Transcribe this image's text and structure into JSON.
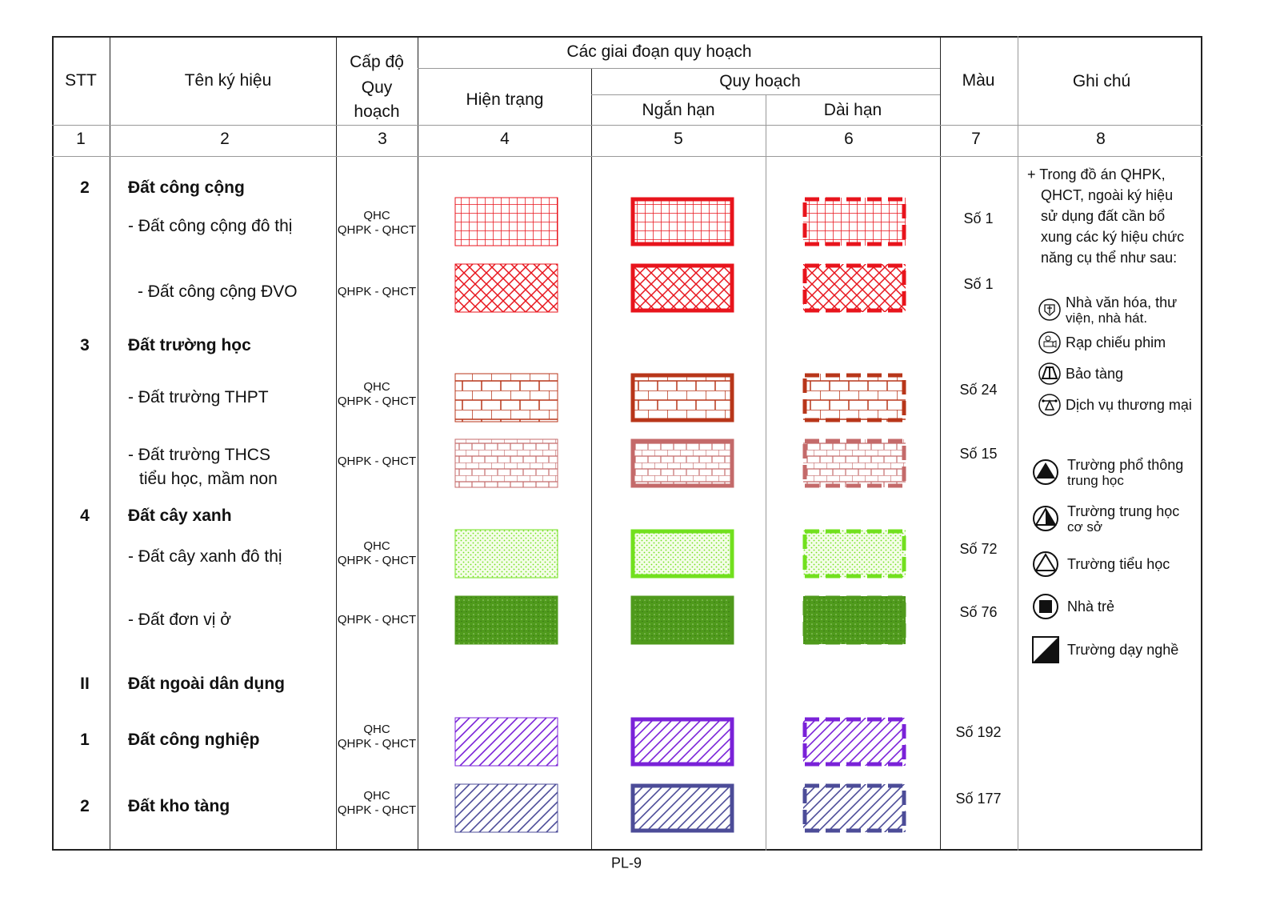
{
  "header": {
    "stt": "STT",
    "name": "Tên ký hiệu",
    "level": [
      "Cấp độ",
      "Quy",
      "hoạch"
    ],
    "stages": "Các giai đoạn quy hoạch",
    "current": "Hiện trạng",
    "planning": "Quy hoạch",
    "short": "Ngắn hạn",
    "long": "Dài hạn",
    "color": "Màu",
    "note": "Ghi chú",
    "numbers": [
      "1",
      "2",
      "3",
      "4",
      "5",
      "6",
      "7",
      "8"
    ]
  },
  "rows": [
    {
      "stt": "2",
      "name": "Đất công cộng",
      "bold": true
    },
    {
      "name": "- Đất công cộng đô thị",
      "level": [
        "QHC",
        "QHPK - QHCT"
      ],
      "color": "Số 1",
      "pattern": "grid",
      "hex": "#e8141c"
    },
    {
      "name": "- Đất công cộng ĐVO",
      "level": [
        "QHPK - QHCT"
      ],
      "color": "Số 1",
      "pattern": "diamond",
      "hex": "#e8141c"
    },
    {
      "stt": "3",
      "name": "Đất trường học",
      "bold": true
    },
    {
      "name": "- Đất  trường THPT",
      "level": [
        "QHC",
        "QHPK - QHCT"
      ],
      "color": "Số 24",
      "pattern": "brick",
      "hex": "#b8361a"
    },
    {
      "name": "- Đất  trường THCS",
      "name2": "tiểu học, mầm non",
      "level": [
        "QHPK - QHCT"
      ],
      "color": "Số 15",
      "pattern": "brick2",
      "hex": "#c46a6a"
    },
    {
      "stt": "4",
      "name": "Đất cây xanh",
      "bold": true
    },
    {
      "name": "- Đất  cây xanh đô thị",
      "level": [
        "QHC",
        "QHPK - QHCT"
      ],
      "color": "Số 72",
      "pattern": "dots",
      "hex": "#72e01e"
    },
    {
      "name": "- Đất  đơn vị ở",
      "level": [
        "QHPK - QHCT"
      ],
      "color": "Số 76",
      "pattern": "dense",
      "hex": "#4f9a1c"
    },
    {
      "stt": "II",
      "name": "Đất ngoài dân dụng",
      "bold": true
    },
    {
      "stt": "1",
      "name": "Đất công nghiệp",
      "bold": true,
      "level": [
        "QHC",
        "QHPK - QHCT"
      ],
      "color": "Số 192",
      "pattern": "diag",
      "hex": "#7a22d8"
    },
    {
      "stt": "2",
      "name": "Đất kho tàng",
      "bold": true,
      "level": [
        "QHC",
        "QHPK - QHCT"
      ],
      "color": "Số 177",
      "pattern": "diag2",
      "hex": "#4c4c98"
    }
  ],
  "notes": {
    "intro": [
      "+ Trong đồ án QHPK,",
      "QHCT, ngoài ký hiệu",
      "sử dụng đất cần bổ",
      "xung các ký hiệu chức",
      "năng cụ thể như sau:"
    ],
    "legend": [
      {
        "icon": "culture-house-icon",
        "label": [
          "Nhà văn hóa, thư",
          "viện, nhà hát."
        ]
      },
      {
        "icon": "cinema-icon",
        "label": [
          "Rạp chiếu phim"
        ]
      },
      {
        "icon": "museum-icon",
        "label": [
          "Bảo tàng"
        ]
      },
      {
        "icon": "commerce-icon",
        "label": [
          "Dịch vụ thương mại"
        ]
      },
      {
        "icon": "high-school-icon",
        "label": [
          "Trường phổ thông",
          "trung học"
        ]
      },
      {
        "icon": "middle-school-icon",
        "label": [
          "Trường trung học",
          "cơ sở"
        ]
      },
      {
        "icon": "primary-school-icon",
        "label": [
          "Trường tiểu học"
        ]
      },
      {
        "icon": "kindergarten-icon",
        "label": [
          "Nhà trẻ"
        ]
      },
      {
        "icon": "vocational-school-icon",
        "label": [
          "Trường dạy nghề"
        ]
      }
    ]
  },
  "footer": "PL-9"
}
